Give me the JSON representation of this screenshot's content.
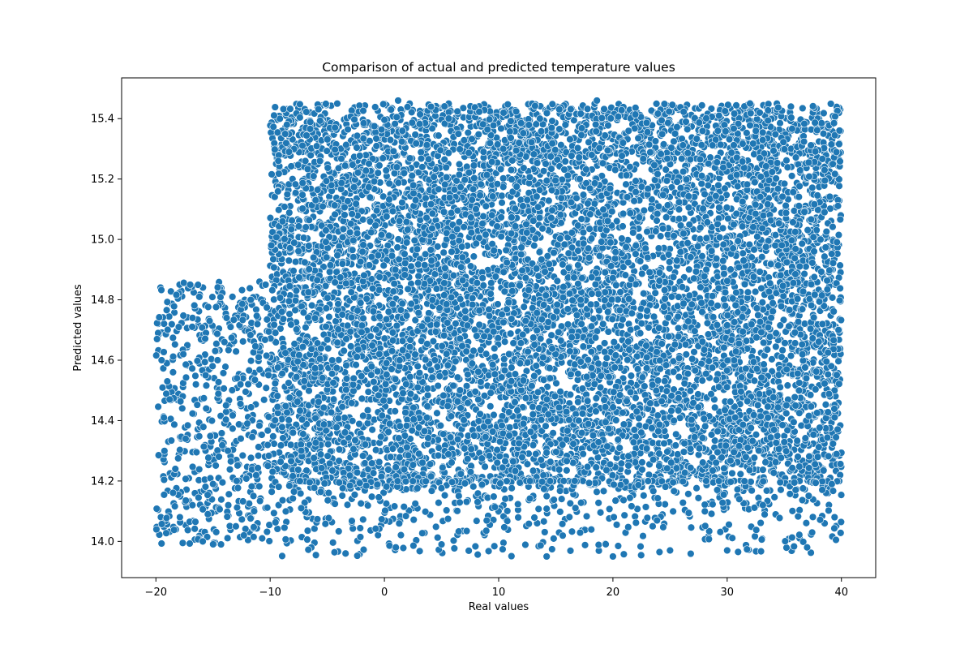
{
  "chart_data": {
    "type": "scatter",
    "title": "Comparison of actual and predicted temperature values",
    "xlabel": "Real values",
    "ylabel": "Predicted values",
    "xlim": [
      -23.0,
      43.0
    ],
    "ylim": [
      13.88,
      15.535
    ],
    "x_ticks": [
      -20,
      -10,
      0,
      10,
      20,
      30,
      40
    ],
    "y_ticks": [
      14.0,
      14.2,
      14.4,
      14.6,
      14.8,
      15.0,
      15.2,
      15.4
    ],
    "x_tick_labels": [
      "−20",
      "−10",
      "0",
      "10",
      "20",
      "30",
      "40"
    ],
    "y_tick_labels": [
      "14.0",
      "14.2",
      "14.4",
      "14.6",
      "14.8",
      "15.0",
      "15.2",
      "15.4"
    ],
    "grid": false,
    "legend": "none",
    "marker_color": "#1f77b4",
    "marker_edge_color": "#ffffff",
    "series": [
      {
        "points_description_free": true,
        "dense_region": {
          "x_range": [
            -10,
            40
          ],
          "y_range": [
            14.2,
            15.45
          ]
        },
        "sparse_left_region": {
          "x_range": [
            -20,
            -10
          ],
          "y_range": [
            13.99,
            14.86
          ]
        },
        "sparse_bottom_region": {
          "x_range": [
            -10,
            40
          ],
          "y_range": [
            13.95,
            14.2
          ]
        },
        "values": [
          [
            -19.9,
            14.67
          ],
          [
            -19.5,
            14.6
          ],
          [
            -19.3,
            14.41
          ],
          [
            -19.0,
            14.53
          ],
          [
            -18.8,
            14.47
          ],
          [
            -18.5,
            14.56
          ],
          [
            -18.3,
            14.24
          ],
          [
            -18.0,
            14.71
          ],
          [
            -17.9,
            14.08
          ],
          [
            -17.6,
            14.62
          ],
          [
            -17.4,
            14.34
          ],
          [
            -17.0,
            14.85
          ],
          [
            -16.8,
            14.12
          ],
          [
            -16.5,
            14.52
          ],
          [
            -16.2,
            14.81
          ],
          [
            -15.9,
            14.0
          ],
          [
            -15.6,
            14.44
          ],
          [
            -15.3,
            14.73
          ],
          [
            -15.0,
            14.19
          ],
          [
            -14.6,
            14.6
          ],
          [
            -14.3,
            13.99
          ],
          [
            -14.0,
            14.66
          ],
          [
            -13.7,
            14.3
          ],
          [
            -13.3,
            14.81
          ],
          [
            -13.0,
            14.05
          ],
          [
            -12.6,
            14.52
          ],
          [
            -12.3,
            14.02
          ],
          [
            -12.0,
            14.39
          ],
          [
            -11.7,
            14.8
          ],
          [
            -11.4,
            14.1
          ],
          [
            -11.0,
            14.61
          ],
          [
            -10.7,
            14.01
          ],
          [
            -10.4,
            14.85
          ],
          [
            -10.2,
            14.25
          ],
          [
            -3.4,
            13.96
          ],
          [
            1.0,
            13.98
          ],
          [
            5.0,
            13.99
          ],
          [
            14.2,
            13.95
          ],
          [
            20.0,
            13.95
          ],
          [
            25.0,
            13.97
          ],
          [
            30.0,
            13.97
          ],
          [
            37.0,
            13.98
          ],
          [
            39.4,
            14.08
          ],
          [
            1.2,
            15.46
          ],
          [
            18.6,
            15.46
          ],
          [
            32.0,
            15.45
          ]
        ]
      }
    ]
  }
}
